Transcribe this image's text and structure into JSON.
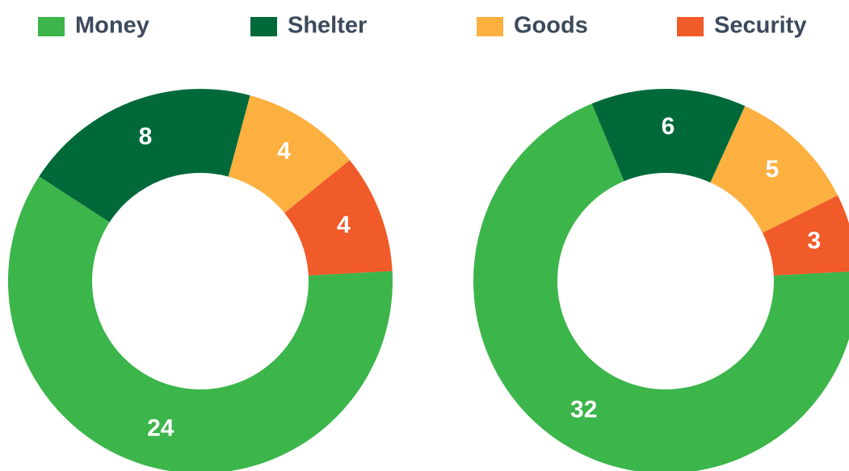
{
  "legend": {
    "labels": [
      "Money",
      "Shelter",
      "Goods",
      "Security"
    ],
    "colors": [
      "#3cb54a",
      "#00693a",
      "#fbb040",
      "#f15a29"
    ]
  },
  "chart_data": [
    {
      "type": "pie",
      "values": [
        24,
        8,
        4,
        4
      ]
    },
    {
      "type": "pie",
      "values": [
        32,
        6,
        5,
        3
      ]
    }
  ]
}
